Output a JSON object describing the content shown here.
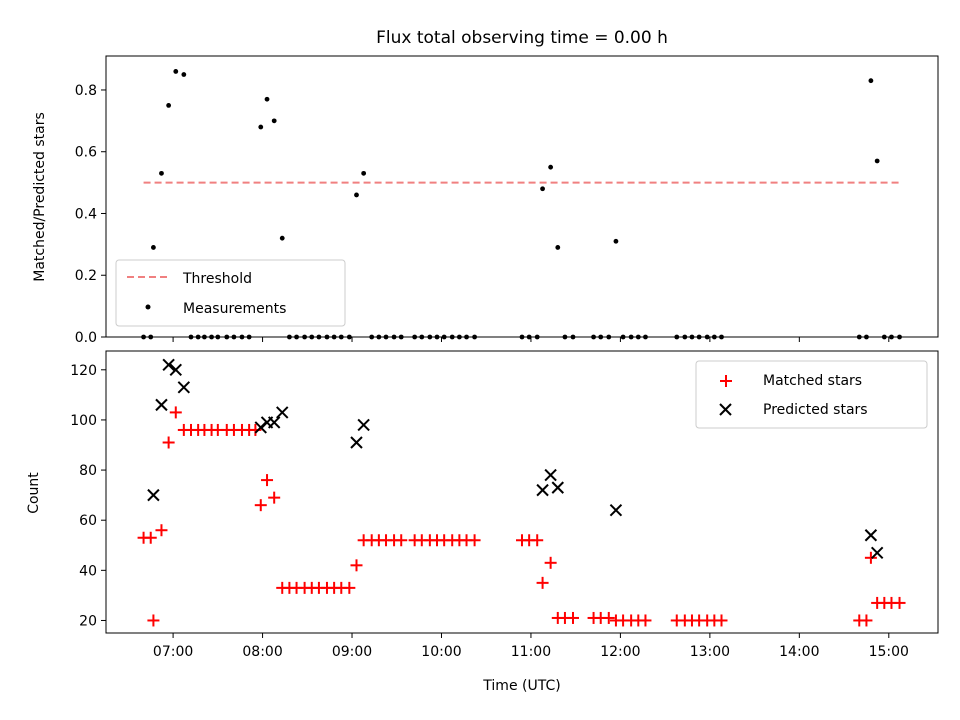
{
  "chart_data": [
    {
      "type": "scatter",
      "title": "Flux total observing time = 0.00 h",
      "xlabel": "",
      "ylabel": "Matched/Predicted stars",
      "x_unit": "hours UTC",
      "xlim": [
        6.25,
        15.55
      ],
      "ylim": [
        0,
        0.91
      ],
      "x_ticks": [
        7,
        8,
        9,
        10,
        11,
        12,
        13,
        14,
        15
      ],
      "x_ticklabels_shown": false,
      "y_ticks": [
        0.0,
        0.2,
        0.4,
        0.6,
        0.8
      ],
      "y_ticklabels": [
        "0.0",
        "0.2",
        "0.4",
        "0.6",
        "0.8"
      ],
      "legend": {
        "placement": "lower-left",
        "entries": [
          "Threshold",
          "Measurements"
        ]
      },
      "threshold": {
        "name": "Threshold",
        "value": 0.5,
        "x_range": [
          6.67,
          15.12
        ],
        "color": "#f08080",
        "style": "dashed"
      },
      "series": [
        {
          "name": "Measurements",
          "color": "#000000",
          "points": [
            [
              6.67,
              0.0
            ],
            [
              6.75,
              0.0
            ],
            [
              6.78,
              0.29
            ],
            [
              6.87,
              0.53
            ],
            [
              6.95,
              0.75
            ],
            [
              7.03,
              0.86
            ],
            [
              7.12,
              0.85
            ],
            [
              7.2,
              0.0
            ],
            [
              7.28,
              0.0
            ],
            [
              7.35,
              0.0
            ],
            [
              7.43,
              0.0
            ],
            [
              7.5,
              0.0
            ],
            [
              7.6,
              0.0
            ],
            [
              7.68,
              0.0
            ],
            [
              7.77,
              0.0
            ],
            [
              7.85,
              0.0
            ],
            [
              7.98,
              0.68
            ],
            [
              8.05,
              0.77
            ],
            [
              8.13,
              0.7
            ],
            [
              8.22,
              0.32
            ],
            [
              8.3,
              0.0
            ],
            [
              8.38,
              0.0
            ],
            [
              8.47,
              0.0
            ],
            [
              8.55,
              0.0
            ],
            [
              8.63,
              0.0
            ],
            [
              8.72,
              0.0
            ],
            [
              8.8,
              0.0
            ],
            [
              8.88,
              0.0
            ],
            [
              8.97,
              0.0
            ],
            [
              9.05,
              0.46
            ],
            [
              9.13,
              0.53
            ],
            [
              9.22,
              0.0
            ],
            [
              9.3,
              0.0
            ],
            [
              9.38,
              0.0
            ],
            [
              9.47,
              0.0
            ],
            [
              9.55,
              0.0
            ],
            [
              9.7,
              0.0
            ],
            [
              9.78,
              0.0
            ],
            [
              9.87,
              0.0
            ],
            [
              9.95,
              0.0
            ],
            [
              10.03,
              0.0
            ],
            [
              10.12,
              0.0
            ],
            [
              10.2,
              0.0
            ],
            [
              10.28,
              0.0
            ],
            [
              10.37,
              0.0
            ],
            [
              10.9,
              0.0
            ],
            [
              10.98,
              0.0
            ],
            [
              11.07,
              0.0
            ],
            [
              11.13,
              0.48
            ],
            [
              11.22,
              0.55
            ],
            [
              11.3,
              0.29
            ],
            [
              11.38,
              0.0
            ],
            [
              11.47,
              0.0
            ],
            [
              11.7,
              0.0
            ],
            [
              11.78,
              0.0
            ],
            [
              11.87,
              0.0
            ],
            [
              11.95,
              0.31
            ],
            [
              12.03,
              0.0
            ],
            [
              12.12,
              0.0
            ],
            [
              12.2,
              0.0
            ],
            [
              12.28,
              0.0
            ],
            [
              12.63,
              0.0
            ],
            [
              12.72,
              0.0
            ],
            [
              12.8,
              0.0
            ],
            [
              12.88,
              0.0
            ],
            [
              12.97,
              0.0
            ],
            [
              13.05,
              0.0
            ],
            [
              13.13,
              0.0
            ],
            [
              14.67,
              0.0
            ],
            [
              14.75,
              0.0
            ],
            [
              14.8,
              0.83
            ],
            [
              14.87,
              0.57
            ],
            [
              14.95,
              0.0
            ],
            [
              15.03,
              0.0
            ],
            [
              15.12,
              0.0
            ]
          ]
        }
      ]
    },
    {
      "type": "scatter",
      "title": "",
      "xlabel": "Time (UTC)",
      "ylabel": "Count",
      "x_unit": "hours UTC",
      "xlim": [
        6.25,
        15.55
      ],
      "ylim": [
        15,
        127.5
      ],
      "x_ticks": [
        7,
        8,
        9,
        10,
        11,
        12,
        13,
        14,
        15
      ],
      "x_ticklabels": [
        "07:00",
        "08:00",
        "09:00",
        "10:00",
        "11:00",
        "12:00",
        "13:00",
        "14:00",
        "15:00"
      ],
      "y_ticks": [
        20,
        40,
        60,
        80,
        100,
        120
      ],
      "y_ticklabels": [
        "20",
        "40",
        "60",
        "80",
        "100",
        "120"
      ],
      "legend": {
        "placement": "top-right",
        "entries": [
          "Matched stars",
          "Predicted stars"
        ]
      },
      "series": [
        {
          "name": "Matched stars",
          "marker": "plus",
          "color": "#ff0000",
          "points": [
            [
              6.67,
              53
            ],
            [
              6.75,
              53
            ],
            [
              6.78,
              20
            ],
            [
              6.87,
              56
            ],
            [
              6.95,
              91
            ],
            [
              7.03,
              103
            ],
            [
              7.12,
              96
            ],
            [
              7.2,
              96
            ],
            [
              7.28,
              96
            ],
            [
              7.35,
              96
            ],
            [
              7.43,
              96
            ],
            [
              7.5,
              96
            ],
            [
              7.6,
              96
            ],
            [
              7.68,
              96
            ],
            [
              7.77,
              96
            ],
            [
              7.85,
              96
            ],
            [
              7.92,
              96
            ],
            [
              7.98,
              66
            ],
            [
              8.05,
              76
            ],
            [
              8.13,
              69
            ],
            [
              8.22,
              33
            ],
            [
              8.3,
              33
            ],
            [
              8.38,
              33
            ],
            [
              8.47,
              33
            ],
            [
              8.55,
              33
            ],
            [
              8.63,
              33
            ],
            [
              8.72,
              33
            ],
            [
              8.8,
              33
            ],
            [
              8.88,
              33
            ],
            [
              8.97,
              33
            ],
            [
              9.05,
              42
            ],
            [
              9.13,
              52
            ],
            [
              9.22,
              52
            ],
            [
              9.3,
              52
            ],
            [
              9.38,
              52
            ],
            [
              9.47,
              52
            ],
            [
              9.55,
              52
            ],
            [
              9.7,
              52
            ],
            [
              9.78,
              52
            ],
            [
              9.87,
              52
            ],
            [
              9.95,
              52
            ],
            [
              10.03,
              52
            ],
            [
              10.12,
              52
            ],
            [
              10.2,
              52
            ],
            [
              10.28,
              52
            ],
            [
              10.37,
              52
            ],
            [
              10.9,
              52
            ],
            [
              10.98,
              52
            ],
            [
              11.07,
              52
            ],
            [
              11.13,
              35
            ],
            [
              11.22,
              43
            ],
            [
              11.3,
              21
            ],
            [
              11.38,
              21
            ],
            [
              11.47,
              21
            ],
            [
              11.7,
              21
            ],
            [
              11.78,
              21
            ],
            [
              11.87,
              21
            ],
            [
              11.95,
              20
            ],
            [
              12.03,
              20
            ],
            [
              12.12,
              20
            ],
            [
              12.2,
              20
            ],
            [
              12.28,
              20
            ],
            [
              12.63,
              20
            ],
            [
              12.72,
              20
            ],
            [
              12.8,
              20
            ],
            [
              12.88,
              20
            ],
            [
              12.97,
              20
            ],
            [
              13.05,
              20
            ],
            [
              13.13,
              20
            ],
            [
              14.67,
              20
            ],
            [
              14.75,
              20
            ],
            [
              14.8,
              45
            ],
            [
              14.87,
              27
            ],
            [
              14.95,
              27
            ],
            [
              15.03,
              27
            ],
            [
              15.12,
              27
            ]
          ]
        },
        {
          "name": "Predicted stars",
          "marker": "x",
          "color": "#000000",
          "points": [
            [
              6.78,
              70
            ],
            [
              6.87,
              106
            ],
            [
              6.95,
              122
            ],
            [
              7.03,
              120
            ],
            [
              7.12,
              113
            ],
            [
              7.98,
              97
            ],
            [
              8.05,
              99
            ],
            [
              8.13,
              99
            ],
            [
              8.22,
              103
            ],
            [
              9.05,
              91
            ],
            [
              9.13,
              98
            ],
            [
              11.13,
              72
            ],
            [
              11.22,
              78
            ],
            [
              11.3,
              73
            ],
            [
              11.95,
              64
            ],
            [
              14.8,
              54
            ],
            [
              14.87,
              47
            ]
          ]
        }
      ]
    }
  ]
}
